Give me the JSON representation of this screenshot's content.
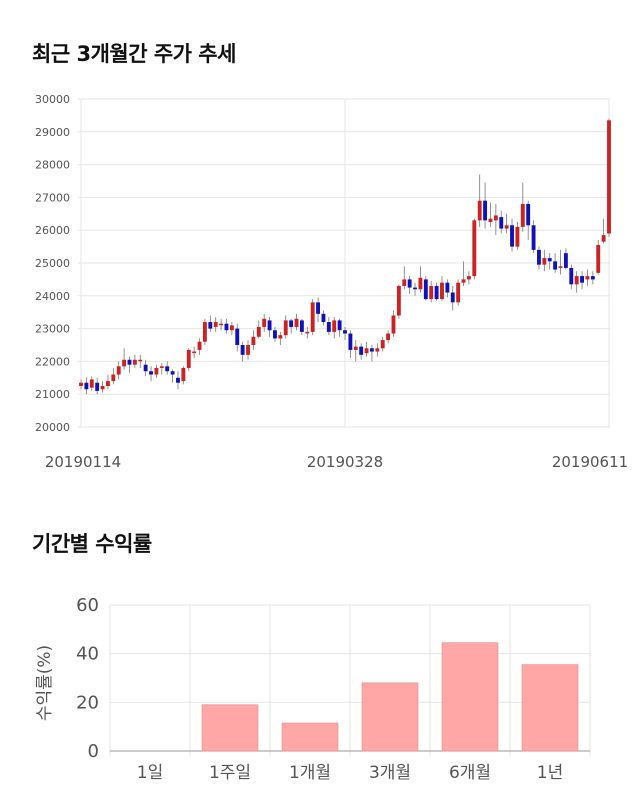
{
  "section1": {
    "title": "최근 3개월간 주가 추세"
  },
  "section2": {
    "title": "기간별 수익률"
  },
  "chart_data": [
    {
      "type": "candlestick",
      "title": "최근 3개월간 주가 추세",
      "ylim": [
        20000,
        30000
      ],
      "yticks": [
        "30000",
        "29000",
        "28000",
        "27000",
        "26000",
        "25000",
        "24000",
        "23000",
        "22000",
        "21000",
        "20000"
      ],
      "xticks": [
        "20190114",
        "20190328",
        "20190611"
      ],
      "grid": true,
      "colors": {
        "up": "#cc2222",
        "down": "#1111bb",
        "wick": "#777777"
      },
      "candles": [
        [
          21250,
          21350,
          21450,
          21150
        ],
        [
          21350,
          21150,
          21500,
          21000
        ],
        [
          21200,
          21450,
          21550,
          21100
        ],
        [
          21350,
          21100,
          21500,
          21000
        ],
        [
          21150,
          21250,
          21400,
          21050
        ],
        [
          21250,
          21400,
          21600,
          21150
        ],
        [
          21400,
          21600,
          21800,
          21300
        ],
        [
          21600,
          21850,
          22000,
          21450
        ],
        [
          21850,
          22050,
          22400,
          21750
        ],
        [
          22050,
          21900,
          22150,
          21650
        ],
        [
          21900,
          22050,
          22200,
          21800
        ],
        [
          22050,
          22050,
          22200,
          21800
        ],
        [
          21900,
          21700,
          22050,
          21550
        ],
        [
          21700,
          21600,
          21850,
          21400
        ],
        [
          21600,
          21800,
          21900,
          21500
        ],
        [
          21800,
          21850,
          21950,
          21600
        ],
        [
          21850,
          21700,
          22000,
          21600
        ],
        [
          21700,
          21600,
          21750,
          21350
        ],
        [
          21500,
          21350,
          21700,
          21150
        ],
        [
          21400,
          21800,
          21850,
          21300
        ],
        [
          21800,
          22350,
          22400,
          21700
        ],
        [
          22300,
          22300,
          22450,
          22100
        ],
        [
          22350,
          22600,
          22700,
          22200
        ],
        [
          22600,
          23200,
          23300,
          22500
        ],
        [
          23200,
          23000,
          23400,
          22900
        ],
        [
          23050,
          23200,
          23350,
          22900
        ],
        [
          23150,
          23150,
          23300,
          22950
        ],
        [
          23150,
          22950,
          23300,
          22850
        ],
        [
          22950,
          23100,
          23200,
          22800
        ],
        [
          23000,
          22500,
          23150,
          22300
        ],
        [
          22500,
          22200,
          22600,
          22000
        ],
        [
          22200,
          22500,
          22650,
          22050
        ],
        [
          22500,
          22750,
          22950,
          22350
        ],
        [
          22750,
          23050,
          23250,
          22700
        ],
        [
          23050,
          23300,
          23450,
          22900
        ],
        [
          23250,
          22950,
          23350,
          22750
        ],
        [
          22950,
          22700,
          23050,
          22600
        ],
        [
          22700,
          22800,
          22900,
          22500
        ],
        [
          22800,
          23250,
          23400,
          22700
        ],
        [
          23250,
          23050,
          23300,
          22850
        ],
        [
          23050,
          23300,
          23450,
          22950
        ],
        [
          23250,
          22900,
          23300,
          22800
        ],
        [
          22900,
          22900,
          23050,
          22700
        ],
        [
          22900,
          23800,
          23900,
          22800
        ],
        [
          23800,
          23450,
          23950,
          23200
        ],
        [
          23450,
          23200,
          23550,
          23100
        ],
        [
          23200,
          22900,
          23350,
          22800
        ],
        [
          22900,
          23250,
          23350,
          22700
        ],
        [
          23250,
          22950,
          23300,
          22750
        ],
        [
          22950,
          22850,
          23050,
          22650
        ],
        [
          22850,
          22350,
          22950,
          22100
        ],
        [
          22350,
          22450,
          22650,
          22000
        ],
        [
          22450,
          22200,
          22550,
          22050
        ],
        [
          22250,
          22400,
          22600,
          22150
        ],
        [
          22400,
          22300,
          22500,
          22000
        ],
        [
          22300,
          22400,
          22550,
          22150
        ],
        [
          22400,
          22650,
          22750,
          22300
        ],
        [
          22650,
          22850,
          22950,
          22550
        ],
        [
          22850,
          23400,
          23550,
          22750
        ],
        [
          23400,
          24300,
          24350,
          23300
        ],
        [
          24300,
          24500,
          24900,
          24200
        ],
        [
          24500,
          24250,
          24600,
          24050
        ],
        [
          24250,
          24200,
          24400,
          24000
        ],
        [
          24200,
          24550,
          24900,
          24100
        ],
        [
          24500,
          23900,
          24600,
          23850
        ],
        [
          23900,
          24300,
          24450,
          23800
        ],
        [
          24300,
          23900,
          24400,
          23850
        ],
        [
          23900,
          24400,
          24600,
          23850
        ],
        [
          24400,
          24100,
          24500,
          23950
        ],
        [
          24100,
          23800,
          24300,
          23550
        ],
        [
          23800,
          24400,
          24500,
          23700
        ],
        [
          24400,
          24500,
          25050,
          24300
        ],
        [
          24500,
          24600,
          24750,
          24350
        ],
        [
          24600,
          26300,
          26350,
          24500
        ],
        [
          26300,
          26900,
          27700,
          26100
        ],
        [
          26900,
          26300,
          27450,
          26050
        ],
        [
          26250,
          26350,
          26850,
          26100
        ],
        [
          26300,
          26450,
          26800,
          25850
        ],
        [
          26400,
          26050,
          26600,
          25900
        ],
        [
          26050,
          26150,
          26500,
          25900
        ],
        [
          26150,
          25500,
          26350,
          25350
        ],
        [
          25500,
          26100,
          26250,
          25400
        ],
        [
          26100,
          26800,
          27450,
          25950
        ],
        [
          26800,
          26150,
          26900,
          25700
        ],
        [
          26150,
          25400,
          26300,
          25300
        ],
        [
          25400,
          24950,
          25500,
          24800
        ],
        [
          24950,
          25150,
          25400,
          24750
        ],
        [
          25150,
          25050,
          25300,
          24800
        ],
        [
          25050,
          24800,
          25300,
          24700
        ],
        [
          24850,
          24900,
          25400,
          24650
        ],
        [
          25300,
          24850,
          25450,
          24800
        ],
        [
          24850,
          24350,
          24950,
          24200
        ],
        [
          24350,
          24600,
          24750,
          24100
        ],
        [
          24600,
          24400,
          24750,
          24200
        ],
        [
          24500,
          24600,
          24800,
          24300
        ],
        [
          24600,
          24500,
          24750,
          24350
        ],
        [
          24700,
          25550,
          25700,
          24650
        ],
        [
          25650,
          25850,
          26350,
          25600
        ],
        [
          25900,
          29350,
          29400,
          25800
        ]
      ]
    },
    {
      "type": "bar",
      "title": "기간별 수익률",
      "categories": [
        "1일",
        "1주일",
        "1개월",
        "3개월",
        "6개월",
        "1년"
      ],
      "values": [
        0,
        19,
        11.5,
        28,
        44.5,
        35.5
      ],
      "ylabel": "수익률(%)",
      "ylim": [
        0,
        60
      ],
      "yticks": [
        "0",
        "20",
        "40",
        "60"
      ],
      "grid": true,
      "colors": {
        "bar": "#ffa6a6",
        "bar_edge": "#e58a8a"
      }
    }
  ]
}
